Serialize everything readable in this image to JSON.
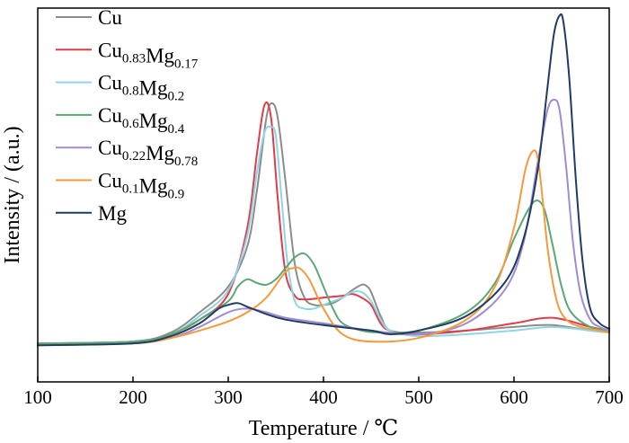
{
  "chart_data": {
    "type": "line",
    "xlabel": "Temperature / ℃",
    "ylabel": "Intensity / (a.u.)",
    "xlim": [
      100,
      700
    ],
    "ylim": [
      0,
      1.02
    ],
    "xticks": [
      "100",
      "200",
      "300",
      "400",
      "500",
      "600",
      "700"
    ],
    "grid": false,
    "legend_position": "top-left",
    "series": [
      {
        "name": "Cu",
        "name_parts": [
          [
            "Cu",
            ""
          ]
        ],
        "color": "#8c8c8c",
        "x": [
          100,
          200,
          240,
          270,
          300,
          320,
          330,
          340,
          346,
          352,
          360,
          370,
          380,
          390,
          400,
          410,
          420,
          430,
          440,
          445,
          450,
          460,
          470,
          500,
          550,
          600,
          640,
          680,
          700
        ],
        "y": [
          0.105,
          0.11,
          0.135,
          0.19,
          0.26,
          0.37,
          0.52,
          0.72,
          0.76,
          0.72,
          0.55,
          0.32,
          0.23,
          0.21,
          0.21,
          0.215,
          0.23,
          0.25,
          0.265,
          0.262,
          0.245,
          0.18,
          0.14,
          0.135,
          0.14,
          0.15,
          0.155,
          0.14,
          0.135
        ]
      },
      {
        "name": "Cu0.83Mg0.17",
        "name_parts": [
          [
            "Cu",
            "0.83"
          ],
          [
            "Mg",
            "0.17"
          ]
        ],
        "color": "#e03c48",
        "x": [
          100,
          200,
          240,
          270,
          300,
          320,
          330,
          338,
          345,
          352,
          360,
          370,
          380,
          400,
          420,
          430,
          440,
          450,
          460,
          470,
          500,
          550,
          600,
          640,
          680,
          700
        ],
        "y": [
          0.105,
          0.11,
          0.13,
          0.17,
          0.24,
          0.42,
          0.62,
          0.755,
          0.72,
          0.5,
          0.3,
          0.235,
          0.225,
          0.23,
          0.235,
          0.24,
          0.23,
          0.21,
          0.16,
          0.14,
          0.13,
          0.14,
          0.16,
          0.175,
          0.15,
          0.14
        ]
      },
      {
        "name": "Cu0.8Mg0.2",
        "name_parts": [
          [
            "Cu",
            "0.8"
          ],
          [
            "Mg",
            "0.2"
          ]
        ],
        "color": "#8ed6e6",
        "x": [
          100,
          200,
          240,
          270,
          300,
          320,
          330,
          338,
          345,
          350,
          356,
          362,
          370,
          380,
          390,
          400,
          410,
          420,
          430,
          440,
          450,
          460,
          470,
          500,
          550,
          600,
          640,
          680,
          700
        ],
        "y": [
          0.105,
          0.11,
          0.13,
          0.18,
          0.25,
          0.4,
          0.57,
          0.68,
          0.695,
          0.67,
          0.5,
          0.33,
          0.22,
          0.2,
          0.2,
          0.21,
          0.22,
          0.23,
          0.245,
          0.245,
          0.22,
          0.17,
          0.14,
          0.125,
          0.13,
          0.14,
          0.15,
          0.14,
          0.135
        ]
      },
      {
        "name": "Cu0.6Mg0.4",
        "name_parts": [
          [
            "Cu",
            "0.6"
          ],
          [
            "Mg",
            "0.4"
          ]
        ],
        "color": "#5aa873",
        "x": [
          100,
          200,
          240,
          270,
          300,
          310,
          320,
          330,
          340,
          350,
          360,
          370,
          380,
          390,
          400,
          410,
          420,
          440,
          460,
          500,
          550,
          580,
          600,
          615,
          624,
          632,
          640,
          650,
          660,
          680,
          700
        ],
        "y": [
          0.105,
          0.11,
          0.13,
          0.17,
          0.22,
          0.26,
          0.28,
          0.27,
          0.265,
          0.28,
          0.31,
          0.34,
          0.35,
          0.32,
          0.26,
          0.2,
          0.16,
          0.14,
          0.135,
          0.14,
          0.19,
          0.27,
          0.39,
          0.47,
          0.495,
          0.47,
          0.38,
          0.26,
          0.19,
          0.15,
          0.14
        ]
      },
      {
        "name": "Cu0.22Mg0.78",
        "name_parts": [
          [
            "Cu",
            "0.22"
          ],
          [
            "Mg",
            "0.78"
          ]
        ],
        "color": "#a08cd2",
        "x": [
          100,
          200,
          240,
          270,
          300,
          320,
          340,
          360,
          400,
          450,
          500,
          550,
          590,
          610,
          625,
          635,
          642,
          648,
          655,
          662,
          670,
          680,
          690,
          700
        ],
        "y": [
          0.1,
          0.105,
          0.12,
          0.15,
          0.19,
          0.2,
          0.19,
          0.175,
          0.16,
          0.14,
          0.13,
          0.16,
          0.25,
          0.38,
          0.6,
          0.74,
          0.77,
          0.74,
          0.58,
          0.38,
          0.24,
          0.17,
          0.15,
          0.14
        ]
      },
      {
        "name": "Cu0.1Mg0.9",
        "name_parts": [
          [
            "Cu",
            "0.1"
          ],
          [
            "Mg",
            "0.9"
          ]
        ],
        "color": "#f59a3c",
        "x": [
          100,
          200,
          240,
          270,
          300,
          320,
          340,
          360,
          368,
          375,
          385,
          400,
          420,
          450,
          500,
          550,
          580,
          600,
          612,
          620,
          625,
          630,
          636,
          645,
          655,
          670,
          690,
          700
        ],
        "y": [
          0.1,
          0.105,
          0.12,
          0.14,
          0.165,
          0.19,
          0.23,
          0.3,
          0.31,
          0.31,
          0.28,
          0.2,
          0.13,
          0.11,
          0.12,
          0.17,
          0.26,
          0.42,
          0.58,
          0.63,
          0.61,
          0.5,
          0.35,
          0.22,
          0.17,
          0.15,
          0.14,
          0.135
        ]
      },
      {
        "name": "Mg",
        "name_parts": [
          [
            "Mg",
            ""
          ]
        ],
        "color": "#1e3c64",
        "x": [
          100,
          200,
          240,
          270,
          290,
          300,
          310,
          320,
          340,
          360,
          400,
          450,
          470,
          500,
          550,
          590,
          610,
          625,
          635,
          642,
          648,
          652,
          658,
          665,
          672,
          680,
          690,
          700
        ],
        "y": [
          0.1,
          0.105,
          0.125,
          0.16,
          0.2,
          0.21,
          0.215,
          0.205,
          0.185,
          0.17,
          0.155,
          0.14,
          0.13,
          0.14,
          0.18,
          0.27,
          0.39,
          0.58,
          0.8,
          0.95,
          1.0,
          0.98,
          0.83,
          0.55,
          0.33,
          0.2,
          0.16,
          0.145
        ]
      }
    ]
  }
}
